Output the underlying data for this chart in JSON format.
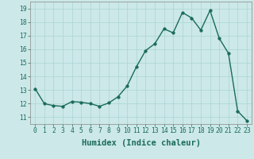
{
  "title": "",
  "xlabel": "Humidex (Indice chaleur)",
  "x": [
    0,
    1,
    2,
    3,
    4,
    5,
    6,
    7,
    8,
    9,
    10,
    11,
    12,
    13,
    14,
    15,
    16,
    17,
    18,
    19,
    20,
    21,
    22,
    23
  ],
  "y": [
    13.1,
    12.0,
    11.85,
    11.8,
    12.15,
    12.1,
    12.0,
    11.8,
    12.05,
    12.5,
    13.3,
    14.7,
    15.9,
    16.4,
    17.5,
    17.2,
    18.7,
    18.3,
    17.4,
    18.85,
    16.8,
    15.7,
    11.45,
    10.75
  ],
  "line_color": "#1a6b5a",
  "marker_size": 2.5,
  "line_width": 1.0,
  "bg_color": "#cce8e8",
  "grid_color": "#aad4d4",
  "xlim": [
    -0.5,
    23.5
  ],
  "ylim": [
    10.5,
    19.5
  ],
  "yticks": [
    11,
    12,
    13,
    14,
    15,
    16,
    17,
    18,
    19
  ],
  "xticks": [
    0,
    1,
    2,
    3,
    4,
    5,
    6,
    7,
    8,
    9,
    10,
    11,
    12,
    13,
    14,
    15,
    16,
    17,
    18,
    19,
    20,
    21,
    22,
    23
  ],
  "tick_fontsize": 5.8,
  "xlabel_fontsize": 7.5,
  "tick_color": "#1a6b5a"
}
